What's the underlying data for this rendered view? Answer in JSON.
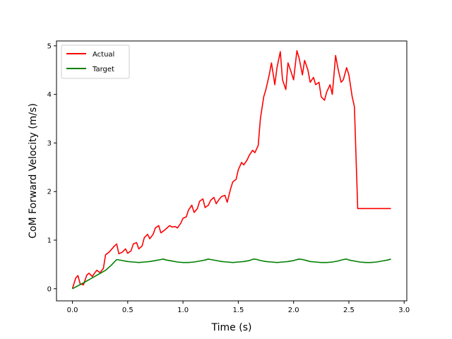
{
  "chart_data": {
    "type": "line",
    "title": "",
    "xlabel": "Time (s)",
    "ylabel": "CoM Forward Velocity (m/s)",
    "xlim": [
      -0.144,
      3.024
    ],
    "ylim": [
      -0.25,
      5.1
    ],
    "xticks": [
      0.0,
      0.5,
      1.0,
      1.5,
      2.0,
      2.5,
      3.0
    ],
    "xtick_labels": [
      "0.0",
      "0.5",
      "1.0",
      "1.5",
      "2.0",
      "2.5",
      "3.0"
    ],
    "yticks": [
      0,
      1,
      2,
      3,
      4,
      5
    ],
    "ytick_labels": [
      "0",
      "1",
      "2",
      "3",
      "4",
      "5"
    ],
    "grid": false,
    "legend_position": "top-left",
    "series": [
      {
        "name": "Actual",
        "color": "#ff0000",
        "x": [
          0.0,
          0.03,
          0.05,
          0.07,
          0.1,
          0.13,
          0.15,
          0.18,
          0.2,
          0.22,
          0.25,
          0.28,
          0.3,
          0.33,
          0.35,
          0.38,
          0.4,
          0.42,
          0.45,
          0.48,
          0.5,
          0.53,
          0.55,
          0.58,
          0.6,
          0.63,
          0.65,
          0.68,
          0.7,
          0.73,
          0.75,
          0.78,
          0.8,
          0.83,
          0.85,
          0.88,
          0.9,
          0.93,
          0.95,
          0.98,
          1.0,
          1.03,
          1.05,
          1.08,
          1.1,
          1.13,
          1.15,
          1.18,
          1.2,
          1.23,
          1.25,
          1.28,
          1.3,
          1.33,
          1.35,
          1.38,
          1.4,
          1.43,
          1.45,
          1.48,
          1.5,
          1.53,
          1.55,
          1.58,
          1.6,
          1.63,
          1.65,
          1.68,
          1.7,
          1.73,
          1.75,
          1.78,
          1.8,
          1.83,
          1.85,
          1.88,
          1.9,
          1.93,
          1.95,
          1.98,
          2.0,
          2.03,
          2.05,
          2.08,
          2.1,
          2.13,
          2.15,
          2.18,
          2.2,
          2.23,
          2.25,
          2.28,
          2.3,
          2.33,
          2.35,
          2.38,
          2.4,
          2.43,
          2.45,
          2.48,
          2.5,
          2.53,
          2.55,
          2.58,
          2.6,
          2.63,
          2.65,
          2.68,
          2.7,
          2.72,
          2.74,
          2.76,
          2.78,
          2.8,
          2.82,
          2.84,
          2.86,
          2.87,
          2.88
        ],
        "y": [
          0.0,
          0.22,
          0.27,
          0.1,
          0.08,
          0.28,
          0.32,
          0.25,
          0.32,
          0.38,
          0.33,
          0.42,
          0.7,
          0.75,
          0.8,
          0.88,
          0.92,
          0.72,
          0.75,
          0.82,
          0.73,
          0.78,
          0.92,
          0.95,
          0.82,
          0.88,
          1.05,
          1.12,
          1.03,
          1.12,
          1.25,
          1.3,
          1.15,
          1.2,
          1.24,
          1.3,
          1.27,
          1.28,
          1.25,
          1.35,
          1.45,
          1.48,
          1.62,
          1.72,
          1.57,
          1.65,
          1.8,
          1.85,
          1.67,
          1.72,
          1.82,
          1.88,
          1.75,
          1.85,
          1.9,
          1.92,
          1.78,
          2.05,
          2.2,
          2.25,
          2.45,
          2.6,
          2.55,
          2.65,
          2.75,
          2.85,
          2.8,
          2.95,
          3.5,
          3.95,
          4.1,
          4.4,
          4.65,
          4.2,
          4.55,
          4.88,
          4.3,
          4.1,
          4.65,
          4.45,
          4.3,
          4.9,
          4.75,
          4.4,
          4.7,
          4.5,
          4.25,
          4.35,
          4.2,
          4.25,
          3.95,
          3.88,
          4.05,
          4.2,
          4.0,
          4.8,
          4.55,
          4.25,
          4.3,
          4.55,
          4.4,
          3.95,
          3.75,
          1.65,
          1.65,
          1.65,
          1.65,
          1.65,
          1.65,
          1.65,
          1.65,
          1.65,
          1.65,
          1.65,
          1.65,
          1.65,
          1.65,
          1.65,
          1.65
        ]
      },
      {
        "name": "Target",
        "color": "#008000",
        "x": [
          0.0,
          0.1,
          0.2,
          0.3,
          0.35,
          0.4,
          0.45,
          0.5,
          0.55,
          0.6,
          0.65,
          0.7,
          0.75,
          0.8,
          0.82,
          0.85,
          0.9,
          0.95,
          1.0,
          1.05,
          1.1,
          1.15,
          1.2,
          1.23,
          1.25,
          1.3,
          1.35,
          1.4,
          1.45,
          1.5,
          1.55,
          1.6,
          1.64,
          1.67,
          1.7,
          1.75,
          1.8,
          1.85,
          1.9,
          1.95,
          2.0,
          2.05,
          2.08,
          2.1,
          2.15,
          2.2,
          2.25,
          2.3,
          2.35,
          2.4,
          2.45,
          2.48,
          2.5,
          2.55,
          2.6,
          2.65,
          2.7,
          2.75,
          2.8,
          2.85,
          2.88
        ],
        "y": [
          0.0,
          0.12,
          0.25,
          0.38,
          0.48,
          0.6,
          0.58,
          0.56,
          0.55,
          0.54,
          0.55,
          0.56,
          0.58,
          0.6,
          0.61,
          0.59,
          0.57,
          0.55,
          0.54,
          0.54,
          0.55,
          0.57,
          0.59,
          0.61,
          0.6,
          0.58,
          0.56,
          0.55,
          0.54,
          0.55,
          0.56,
          0.58,
          0.61,
          0.6,
          0.58,
          0.56,
          0.55,
          0.54,
          0.55,
          0.56,
          0.58,
          0.61,
          0.6,
          0.59,
          0.56,
          0.55,
          0.54,
          0.54,
          0.55,
          0.57,
          0.6,
          0.61,
          0.59,
          0.57,
          0.55,
          0.54,
          0.54,
          0.55,
          0.57,
          0.59,
          0.61
        ]
      }
    ]
  }
}
